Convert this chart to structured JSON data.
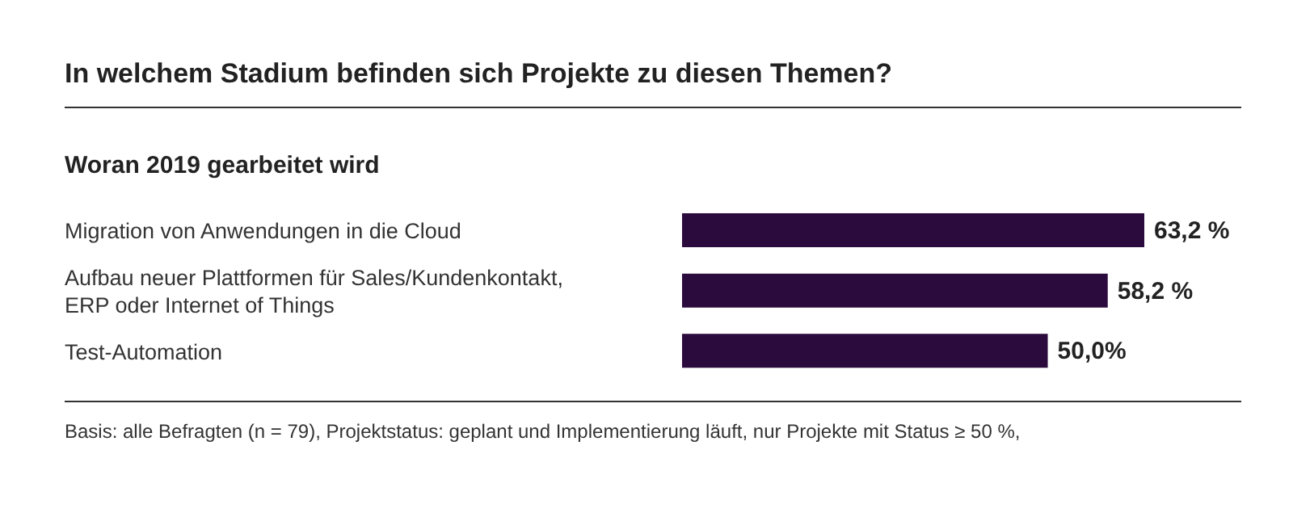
{
  "chart_data": {
    "type": "bar",
    "orientation": "horizontal",
    "title": "In welchem Stadium befinden sich Projekte zu diesen Themen?",
    "subtitle": "Woran 2019 gearbeitet wird",
    "categories": [
      "Migration von Anwendungen in die Cloud",
      "Aufbau neuer Plattformen für Sales/Kundenkontakt, ERP oder Internet of Things",
      "Test-Automation"
    ],
    "values": [
      63.2,
      58.2,
      50.0
    ],
    "value_labels": [
      "63,2 %",
      "58,2 %",
      "50,0%"
    ],
    "color": "#2b0a3d",
    "annotations": [
      "Basis: alle Befragten (n = 79), Projektstatus: geplant und Implementierung läuft, nur Projekte mit Status ≥ 50 %,"
    ]
  }
}
